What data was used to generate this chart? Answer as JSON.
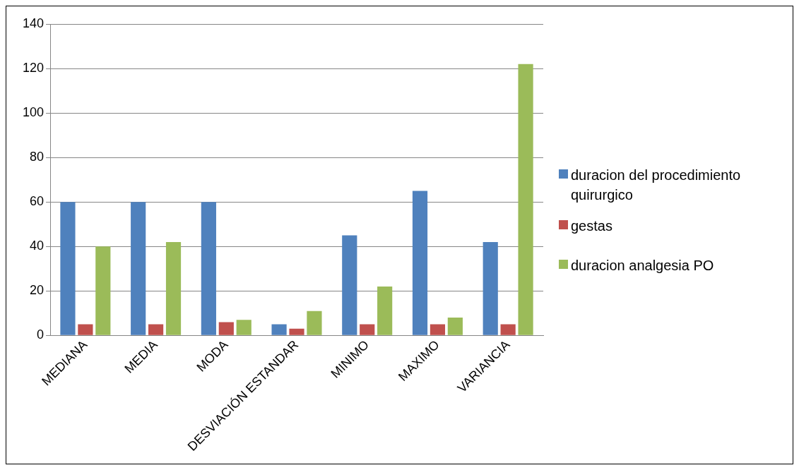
{
  "chart_data": {
    "type": "bar",
    "categories": [
      "MEDIANA",
      "MEDIA",
      "MODA",
      "DESVIACIÓN ESTANDAR",
      "MINIMO",
      "MAXIMO",
      "VARIANCIA"
    ],
    "series": [
      {
        "name": "duracion del procedimiento quirurgico",
        "color": "#4f81bd",
        "values": [
          60,
          60,
          60,
          5,
          45,
          65,
          42
        ]
      },
      {
        "name": "gestas",
        "color": "#c0504d",
        "values": [
          5,
          5,
          6,
          3,
          5,
          5,
          5
        ]
      },
      {
        "name": "duracion analgesia PO",
        "color": "#9bbb59",
        "values": [
          40,
          42,
          7,
          11,
          22,
          8,
          122
        ]
      }
    ],
    "ylim": [
      0,
      140
    ],
    "yticks": [
      0,
      20,
      40,
      60,
      80,
      100,
      120,
      140
    ],
    "grid": "y",
    "legend": "right"
  }
}
